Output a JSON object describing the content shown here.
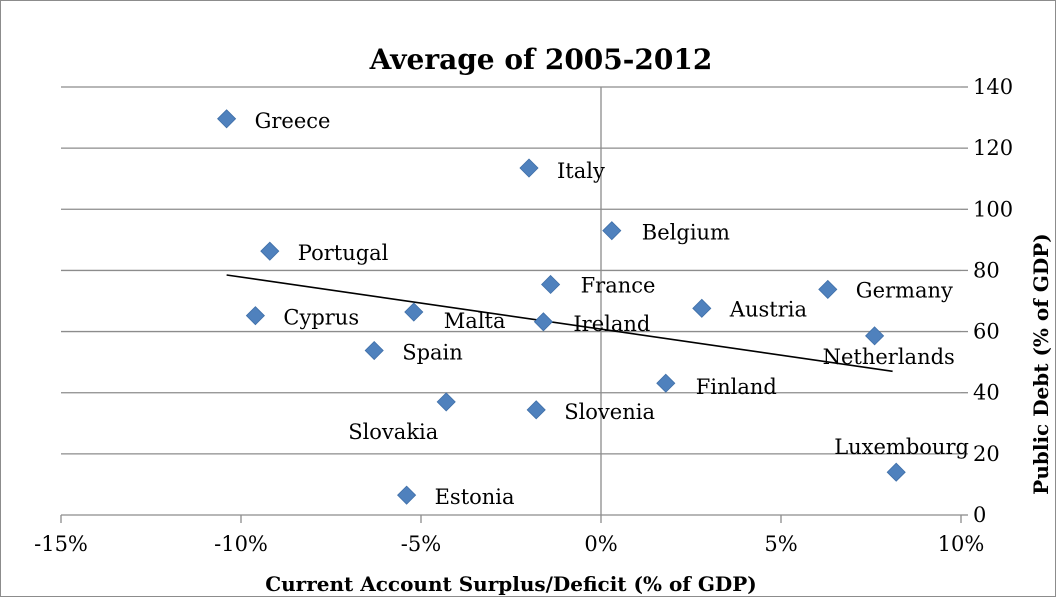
{
  "chart_data": {
    "type": "scatter",
    "title": "Average of 2005-2012",
    "xlabel": "Current Account Surplus/Deficit (% of GDP)",
    "ylabel": "Public Debt (% of GDP)",
    "xlim": [
      -15,
      10
    ],
    "ylim": [
      0,
      140
    ],
    "x_ticks": [
      -15,
      -10,
      -5,
      0,
      5,
      10
    ],
    "x_tick_labels": [
      "-15%",
      "-10%",
      "-5%",
      "0%",
      "5%",
      "10%"
    ],
    "y_ticks": [
      0,
      20,
      40,
      60,
      80,
      100,
      120,
      140
    ],
    "y_tick_labels": [
      "0",
      "20",
      "40",
      "60",
      "80",
      "100",
      "120",
      "140"
    ],
    "y_axis_side": "right",
    "grid": "horizontal",
    "marker": "diamond",
    "marker_color": "#4f81bd",
    "trendline": {
      "type": "linear",
      "x": [
        -10.4,
        8.1
      ],
      "y": [
        78.5,
        47.0
      ],
      "color": "#000000"
    },
    "points": [
      {
        "label": "Greece",
        "x": -10.4,
        "y": 129.6
      },
      {
        "label": "Italy",
        "x": -2.0,
        "y": 113.5
      },
      {
        "label": "Belgium",
        "x": 0.3,
        "y": 93.0
      },
      {
        "label": "Portugal",
        "x": -9.2,
        "y": 86.3
      },
      {
        "label": "France",
        "x": -1.4,
        "y": 75.4
      },
      {
        "label": "Germany",
        "x": 6.3,
        "y": 73.8
      },
      {
        "label": "Austria",
        "x": 2.8,
        "y": 67.6
      },
      {
        "label": "Cyprus",
        "x": -9.6,
        "y": 65.2
      },
      {
        "label": "Malta",
        "x": -5.2,
        "y": 66.4
      },
      {
        "label": "Ireland",
        "x": -1.6,
        "y": 63.2
      },
      {
        "label": "Netherlands",
        "x": 7.6,
        "y": 58.6
      },
      {
        "label": "Spain",
        "x": -6.3,
        "y": 53.8
      },
      {
        "label": "Finland",
        "x": 1.8,
        "y": 43.1
      },
      {
        "label": "Slovakia",
        "x": -4.3,
        "y": 37.0
      },
      {
        "label": "Slovenia",
        "x": -1.8,
        "y": 34.4
      },
      {
        "label": "Luxembourg",
        "x": 8.2,
        "y": 14.0
      },
      {
        "label": "Estonia",
        "x": -5.4,
        "y": 6.5
      }
    ]
  }
}
